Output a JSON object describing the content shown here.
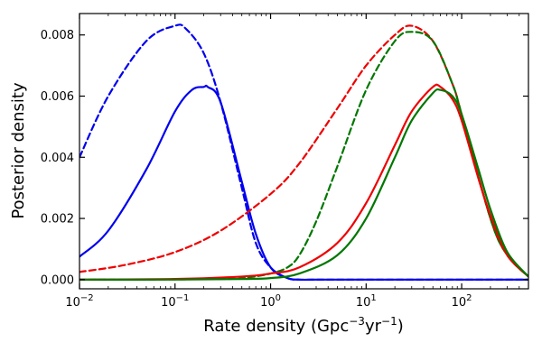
{
  "chart_data": {
    "type": "line",
    "title": "",
    "xlabel": "Rate density (Gpc",
    "xlabel_sup1": "−3",
    "xlabel_mid": "yr",
    "xlabel_sup2": "−1",
    "xlabel_end": ")",
    "ylabel": "Posterior density",
    "xscale": "log",
    "xlim": [
      0.01,
      500
    ],
    "ylim": [
      -0.0003,
      0.0087
    ],
    "grid": false,
    "legend": "none",
    "xticks": [
      {
        "value": 0.01,
        "base": "10",
        "exp": "−2"
      },
      {
        "value": 0.1,
        "base": "10",
        "exp": "−1"
      },
      {
        "value": 1,
        "base": "10",
        "exp": "0"
      },
      {
        "value": 10,
        "base": "10",
        "exp": "1"
      },
      {
        "value": 100,
        "base": "10",
        "exp": "2"
      }
    ],
    "yticks": [
      {
        "value": 0.0,
        "label": "0.000"
      },
      {
        "value": 0.002,
        "label": "0.002"
      },
      {
        "value": 0.004,
        "label": "0.004"
      },
      {
        "value": 0.006,
        "label": "0.006"
      },
      {
        "value": 0.008,
        "label": "0.008"
      }
    ],
    "series": [
      {
        "color": "#0000ee",
        "dash": true,
        "x": [
          0.01,
          0.02,
          0.05,
          0.1,
          0.13,
          0.2,
          0.3,
          0.5,
          0.7,
          1.0,
          1.5,
          2,
          3,
          5,
          10,
          100,
          500
        ],
        "y": [
          0.004,
          0.006,
          0.0078,
          0.0083,
          0.0082,
          0.0074,
          0.0058,
          0.003,
          0.0012,
          0.0004,
          5e-05,
          0.0,
          0.0,
          0.0,
          0.0,
          0.0,
          0.0
        ]
      },
      {
        "color": "#0000ee",
        "dash": false,
        "x": [
          0.01,
          0.02,
          0.05,
          0.1,
          0.15,
          0.2,
          0.22,
          0.3,
          0.5,
          0.7,
          1.0,
          1.5,
          2,
          3,
          5,
          10,
          100,
          500
        ],
        "y": [
          0.00075,
          0.0016,
          0.0036,
          0.0055,
          0.0062,
          0.0063,
          0.0063,
          0.0058,
          0.0032,
          0.0015,
          0.0004,
          5e-05,
          0.0,
          0.0,
          0.0,
          0.0,
          0.0,
          0.0
        ]
      },
      {
        "color": "#ee0000",
        "dash": true,
        "x": [
          0.01,
          0.03,
          0.1,
          0.3,
          1,
          2,
          5,
          10,
          20,
          30,
          50,
          80,
          100,
          200,
          300,
          500
        ],
        "y": [
          0.00025,
          0.00048,
          0.0009,
          0.0016,
          0.0028,
          0.0038,
          0.0056,
          0.007,
          0.008,
          0.0083,
          0.0078,
          0.0064,
          0.0054,
          0.002,
          0.0008,
          0.0001
        ]
      },
      {
        "color": "#007700",
        "dash": true,
        "x": [
          0.01,
          0.3,
          0.6,
          1,
          1.5,
          2,
          3,
          5,
          10,
          20,
          30,
          50,
          80,
          100,
          200,
          300,
          500
        ],
        "y": [
          0.0,
          2e-05,
          8e-05,
          0.0002,
          0.0004,
          0.0008,
          0.0019,
          0.0037,
          0.0062,
          0.0078,
          0.0081,
          0.0078,
          0.0064,
          0.0054,
          0.002,
          0.0008,
          0.0001
        ]
      },
      {
        "color": "#ee0000",
        "dash": false,
        "x": [
          0.01,
          0.1,
          0.5,
          1,
          2,
          5,
          10,
          20,
          30,
          50,
          60,
          80,
          100,
          150,
          200,
          300,
          500
        ],
        "y": [
          0.0,
          2e-05,
          0.0001,
          0.0002,
          0.0004,
          0.0012,
          0.0025,
          0.0044,
          0.0055,
          0.0063,
          0.0063,
          0.0059,
          0.0052,
          0.0033,
          0.0021,
          0.0008,
          0.0001
        ]
      },
      {
        "color": "#007700",
        "dash": false,
        "x": [
          0.01,
          0.1,
          0.5,
          1,
          2,
          5,
          10,
          20,
          30,
          50,
          60,
          80,
          100,
          150,
          200,
          300,
          500
        ],
        "y": [
          0.0,
          0.0,
          2e-05,
          5e-05,
          0.0002,
          0.0008,
          0.002,
          0.004,
          0.0052,
          0.0061,
          0.0062,
          0.006,
          0.0054,
          0.0036,
          0.0023,
          0.0009,
          0.0001
        ]
      }
    ]
  }
}
